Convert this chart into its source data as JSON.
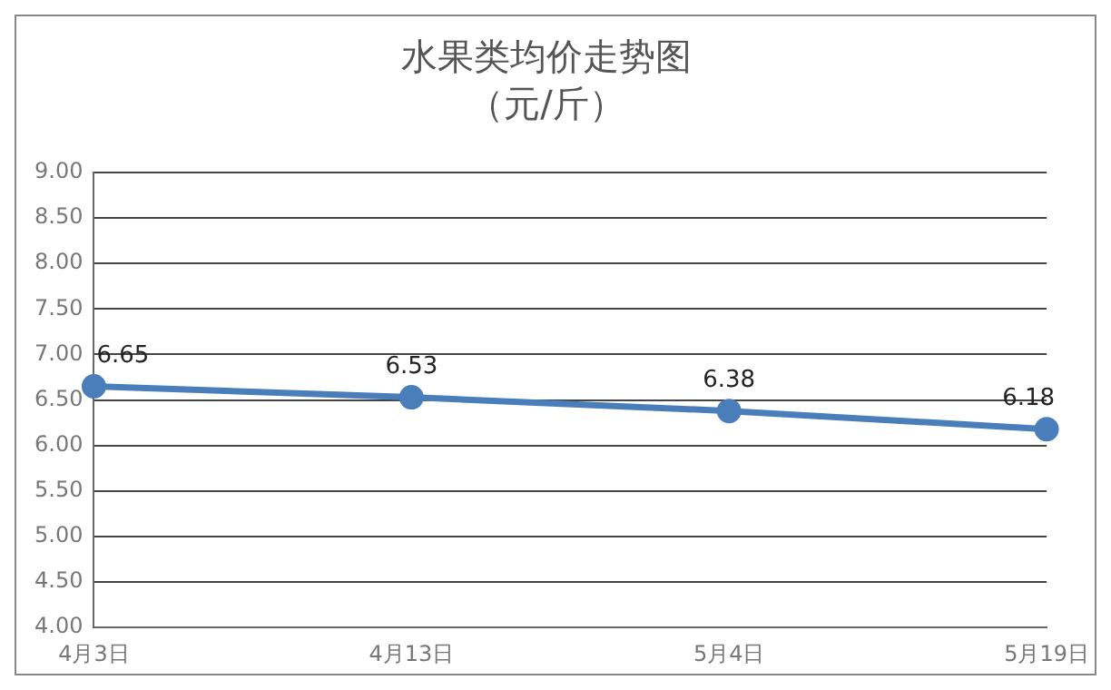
{
  "chart_data": {
    "type": "line",
    "title": "水果类均价走势图",
    "subtitle": "（元/斤）",
    "categories": [
      "4月3日",
      "4月13日",
      "5月4日",
      "5月19日"
    ],
    "series": [
      {
        "color": "#4a7ebb",
        "values": [
          6.65,
          6.53,
          6.38,
          6.18
        ]
      }
    ],
    "ylim": [
      4,
      9
    ],
    "yticks": [
      {
        "value": 4,
        "label": "4.00"
      },
      {
        "value": 4.5,
        "label": "4.50"
      },
      {
        "value": 5,
        "label": "5.00"
      },
      {
        "value": 5.5,
        "label": "5.50"
      },
      {
        "value": 6,
        "label": "6.00"
      },
      {
        "value": 6.5,
        "label": "6.50"
      },
      {
        "value": 7,
        "label": "7.00"
      },
      {
        "value": 7.5,
        "label": "7.50"
      },
      {
        "value": 8,
        "label": "8.00"
      },
      {
        "value": 8.5,
        "label": "8.50"
      },
      {
        "value": 9,
        "label": "9.00"
      }
    ],
    "grid": "y",
    "legend": false,
    "marker": "circle",
    "line_style": "solid",
    "data_labels": true
  }
}
